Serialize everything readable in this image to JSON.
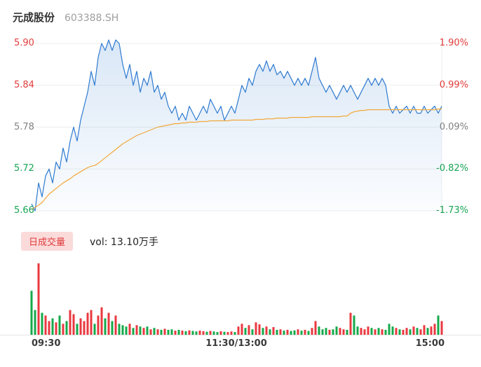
{
  "header": {
    "name": "元成股份",
    "code": "603388.SH"
  },
  "volume_section": {
    "badge": "日成交量",
    "vol_text": "vol: 13.10万手",
    "badge_bg": "#fbdada",
    "badge_color": "#e23b3b"
  },
  "time_axis": {
    "labels": [
      "09:30",
      "11:30/13:00",
      "15:00"
    ]
  },
  "chart_data": {
    "type": "line",
    "title": "元成股份 603388.SH",
    "price_range": [
      5.66,
      5.9
    ],
    "x_ticks": [
      "09:30",
      "11:30/13:00",
      "15:00"
    ],
    "left_labels": [
      {
        "text": "5.90",
        "color": "#e23b3b"
      },
      {
        "text": "5.84",
        "color": "#e23b3b"
      },
      {
        "text": "5.78",
        "color": "#808080"
      },
      {
        "text": "5.72",
        "color": "#18a452"
      },
      {
        "text": "5.66",
        "color": "#18a452"
      }
    ],
    "right_labels": [
      {
        "text": "1.90%",
        "color": "#e23b3b"
      },
      {
        "text": "0.99%",
        "color": "#e23b3b"
      },
      {
        "text": "0.09%",
        "color": "#808080"
      },
      {
        "text": "-0.82%",
        "color": "#18a452"
      },
      {
        "text": "-1.73%",
        "color": "#18a452"
      }
    ],
    "colors": {
      "price_line": "#2f7bd0",
      "avg_line": "#f2a93b",
      "up": "#e9383f",
      "down": "#15a94a",
      "grid": "#ededed"
    },
    "legend": [
      "price",
      "avg_price",
      "volume"
    ],
    "series": [
      {
        "name": "price",
        "values": [
          5.67,
          5.66,
          5.7,
          5.68,
          5.71,
          5.72,
          5.7,
          5.73,
          5.72,
          5.75,
          5.73,
          5.76,
          5.78,
          5.76,
          5.79,
          5.81,
          5.83,
          5.86,
          5.84,
          5.88,
          5.9,
          5.89,
          5.905,
          5.89,
          5.905,
          5.9,
          5.87,
          5.85,
          5.87,
          5.84,
          5.86,
          5.83,
          5.85,
          5.84,
          5.86,
          5.83,
          5.84,
          5.82,
          5.83,
          5.81,
          5.8,
          5.81,
          5.79,
          5.8,
          5.79,
          5.81,
          5.8,
          5.79,
          5.8,
          5.81,
          5.8,
          5.82,
          5.81,
          5.8,
          5.81,
          5.79,
          5.8,
          5.81,
          5.8,
          5.82,
          5.84,
          5.83,
          5.85,
          5.84,
          5.86,
          5.87,
          5.86,
          5.875,
          5.86,
          5.87,
          5.855,
          5.86,
          5.85,
          5.86,
          5.85,
          5.84,
          5.85,
          5.84,
          5.85,
          5.84,
          5.86,
          5.88,
          5.85,
          5.84,
          5.83,
          5.84,
          5.83,
          5.82,
          5.83,
          5.84,
          5.83,
          5.84,
          5.83,
          5.82,
          5.83,
          5.84,
          5.85,
          5.84,
          5.85,
          5.84,
          5.85,
          5.84,
          5.81,
          5.8,
          5.81,
          5.8,
          5.805,
          5.81,
          5.8,
          5.81,
          5.8,
          5.8,
          5.81,
          5.8,
          5.805,
          5.81,
          5.8,
          5.81
        ]
      },
      {
        "name": "avg_price",
        "values": [
          5.662,
          5.665,
          5.668,
          5.672,
          5.678,
          5.684,
          5.688,
          5.692,
          5.696,
          5.7,
          5.703,
          5.706,
          5.71,
          5.713,
          5.716,
          5.719,
          5.722,
          5.724,
          5.725,
          5.728,
          5.732,
          5.736,
          5.74,
          5.744,
          5.748,
          5.752,
          5.756,
          5.759,
          5.762,
          5.765,
          5.768,
          5.77,
          5.772,
          5.774,
          5.776,
          5.778,
          5.78,
          5.781,
          5.782,
          5.783,
          5.784,
          5.785,
          5.785,
          5.786,
          5.786,
          5.787,
          5.787,
          5.787,
          5.788,
          5.788,
          5.788,
          5.789,
          5.789,
          5.789,
          5.789,
          5.789,
          5.789,
          5.79,
          5.79,
          5.79,
          5.79,
          5.79,
          5.79,
          5.79,
          5.791,
          5.791,
          5.791,
          5.792,
          5.792,
          5.792,
          5.793,
          5.793,
          5.793,
          5.793,
          5.794,
          5.794,
          5.794,
          5.794,
          5.794,
          5.794,
          5.795,
          5.795,
          5.795,
          5.795,
          5.795,
          5.795,
          5.795,
          5.795,
          5.795,
          5.796,
          5.796,
          5.8,
          5.802,
          5.803,
          5.804,
          5.804,
          5.805,
          5.805,
          5.805,
          5.805,
          5.805,
          5.805,
          5.805,
          5.805,
          5.805,
          5.805,
          5.805,
          5.805,
          5.805,
          5.805,
          5.805,
          5.805,
          5.805,
          5.805,
          5.805,
          5.805,
          5.806,
          5.806
        ]
      },
      {
        "name": "volume",
        "values": [
          1600,
          900,
          2600,
          800,
          700,
          500,
          600,
          450,
          700,
          400,
          500,
          900,
          750,
          400,
          600,
          500,
          800,
          900,
          400,
          700,
          1000,
          600,
          800,
          500,
          700,
          400,
          350,
          300,
          400,
          250,
          350,
          300,
          250,
          300,
          200,
          250,
          200,
          180,
          220,
          180,
          200,
          150,
          180,
          150,
          130,
          160,
          140,
          120,
          150,
          130,
          110,
          140,
          120,
          100,
          130,
          110,
          100,
          120,
          100,
          300,
          400,
          250,
          350,
          200,
          450,
          380,
          250,
          300,
          200,
          280,
          180,
          200,
          150,
          180,
          140,
          160,
          200,
          150,
          180,
          140,
          250,
          500,
          300,
          200,
          250,
          180,
          200,
          300,
          250,
          200,
          180,
          800,
          700,
          300,
          250,
          200,
          300,
          250,
          200,
          250,
          200,
          180,
          400,
          300,
          250,
          200,
          180,
          250,
          200,
          300,
          250,
          200,
          350,
          250,
          300,
          400,
          700,
          500
        ]
      }
    ]
  }
}
